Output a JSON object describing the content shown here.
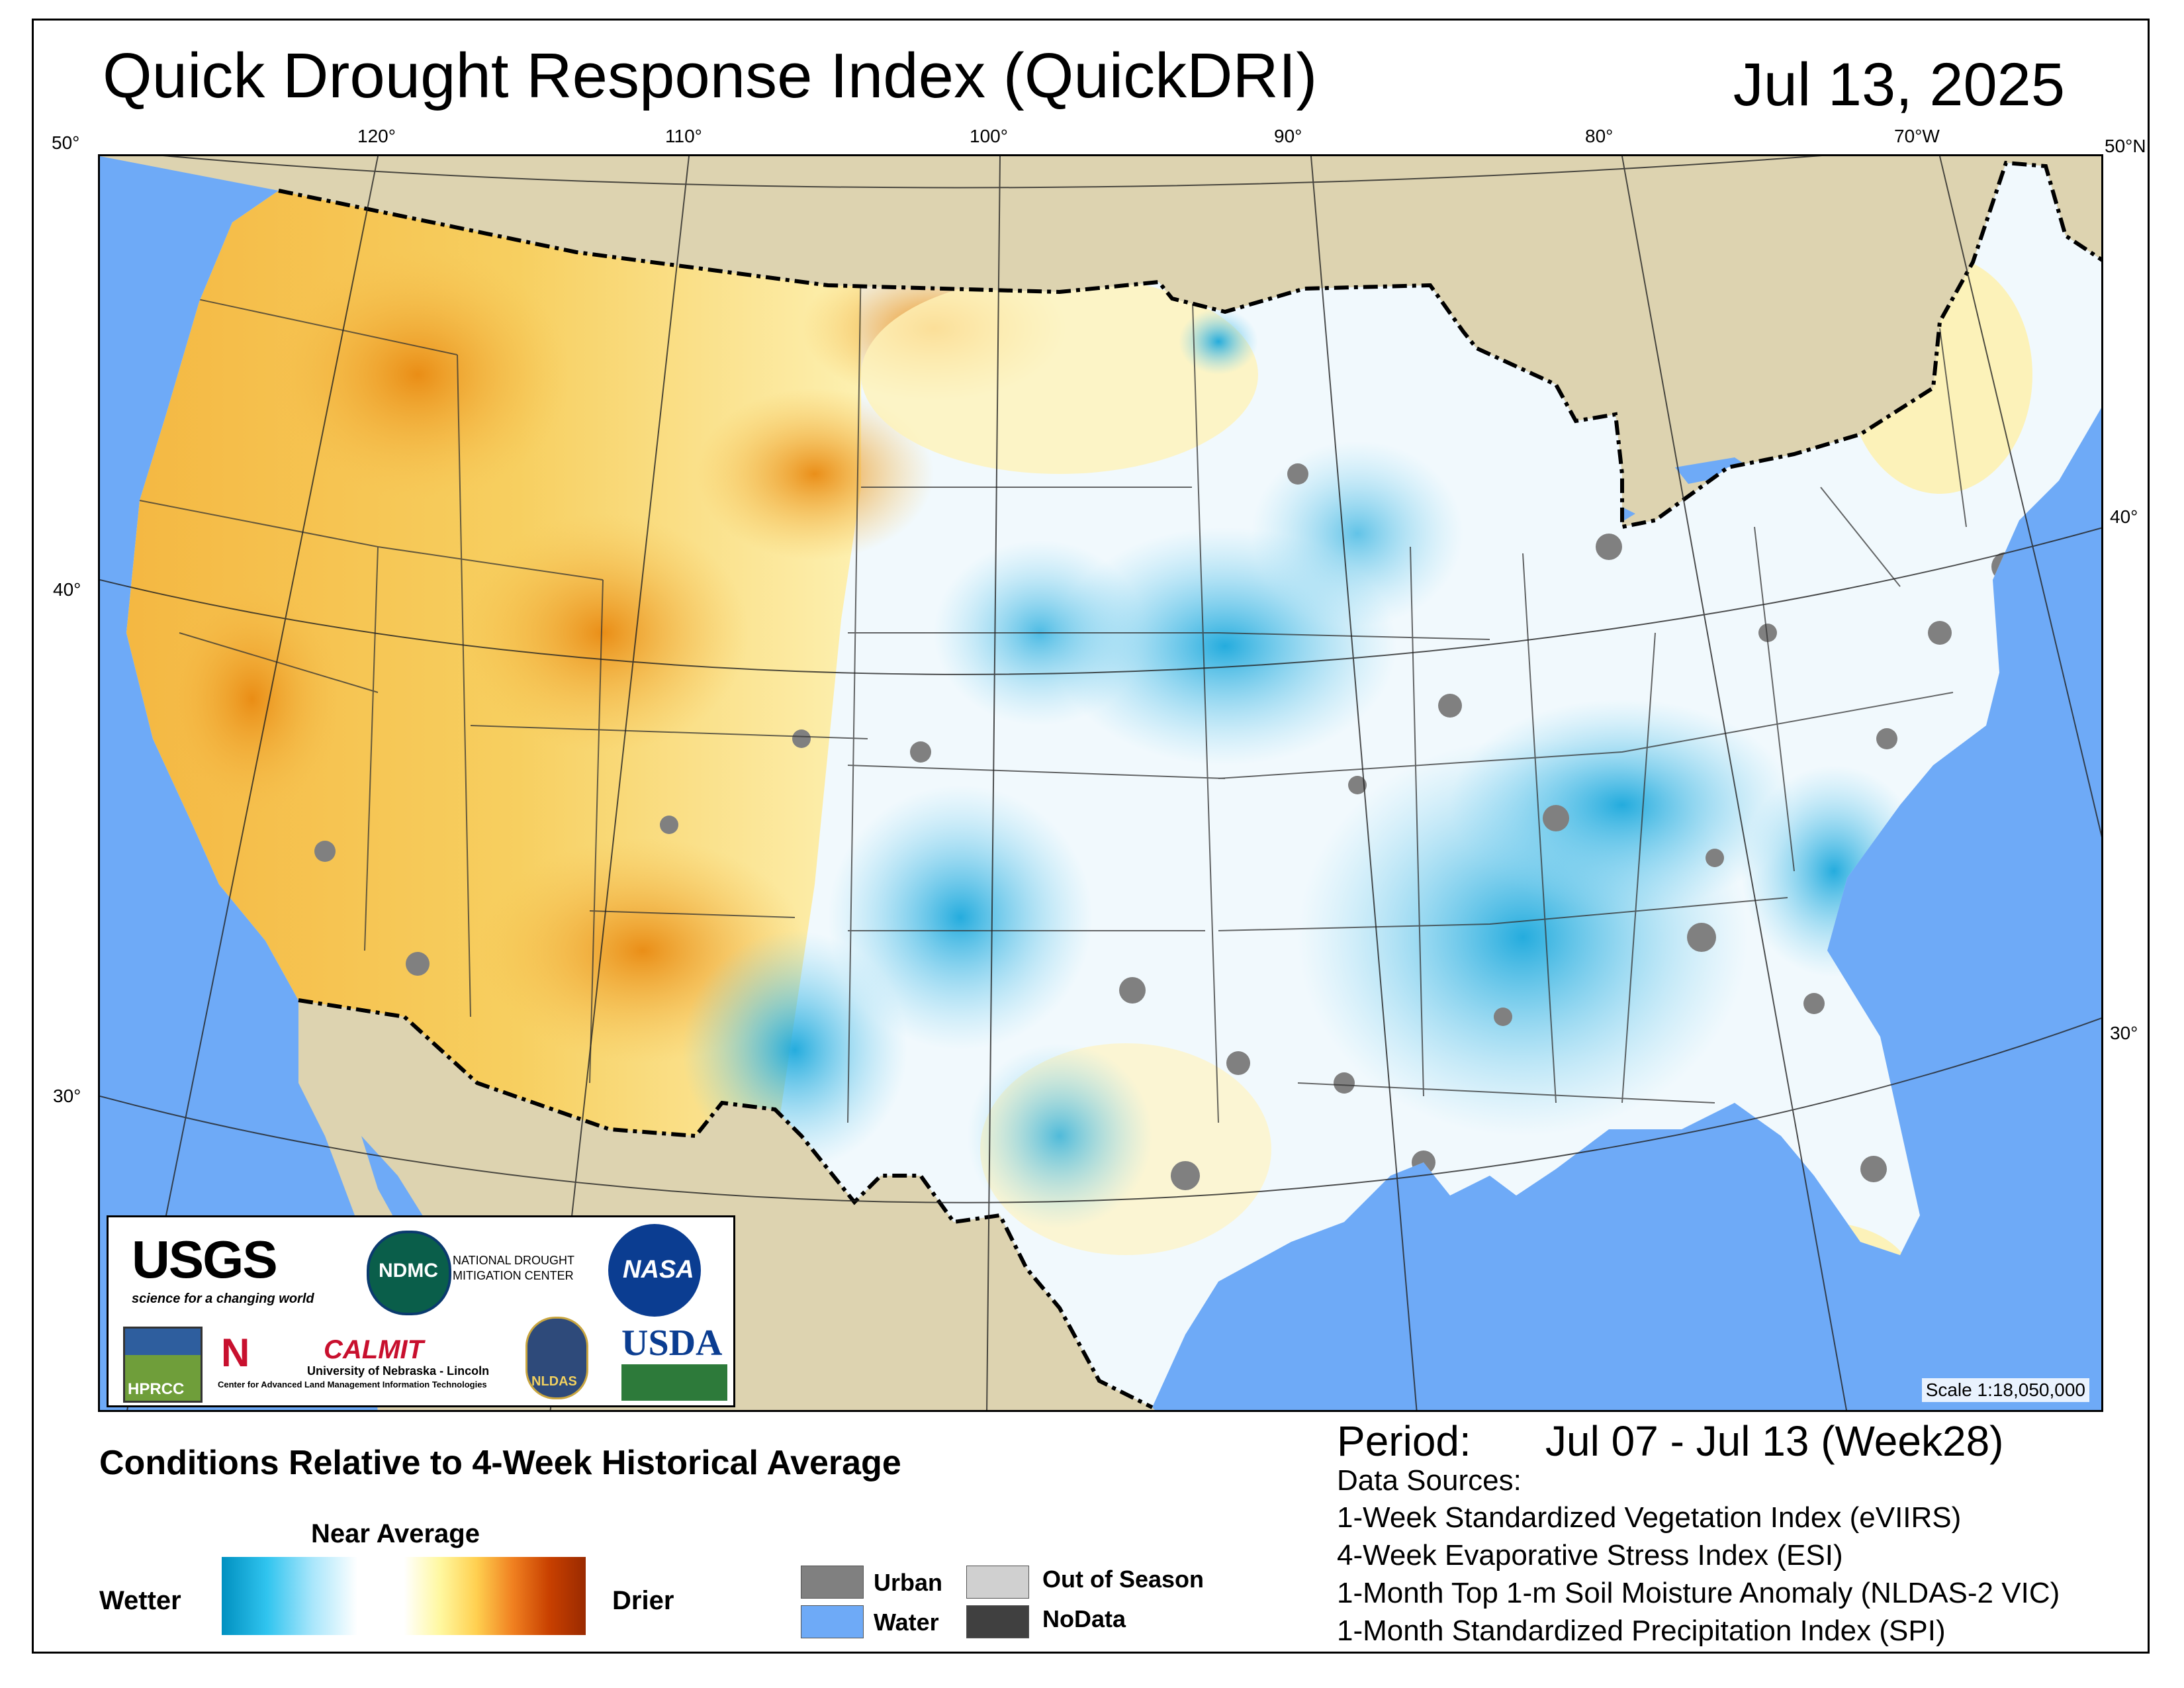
{
  "title": "Quick Drought Response Index (QuickDRI)",
  "date": "Jul 13, 2025",
  "graticule": {
    "top_labels": [
      "50°",
      "120°",
      "110°",
      "100°",
      "90°",
      "80°",
      "70°W",
      "50°N"
    ],
    "left_labels": [
      "40°",
      "30°"
    ],
    "right_labels": [
      "40°",
      "30°"
    ]
  },
  "map": {
    "scale": "Scale 1:18,050,000",
    "colors": {
      "ocean": "#6eaaf7",
      "land_outside": "#ddd3b0",
      "wetter": "#1aa8dc",
      "near_average": "#ffffff",
      "drier": "#f0a020",
      "urban": "#808080",
      "border": "#000000"
    }
  },
  "logos": {
    "usgs": "USGS",
    "usgs_tagline": "science for a changing world",
    "ndmc": "NDMC",
    "ndmc_name_1": "NATIONAL DROUGHT",
    "ndmc_name_2": "MITIGATION CENTER",
    "nasa": "NASA",
    "hprcc": "HPRCC",
    "calmit": "CALMIT",
    "calmit_line1": "University of Nebraska - Lincoln",
    "calmit_line2": "Center for Advanced Land Management Information Technologies",
    "nldas": "NLDAS",
    "usda": "USDA"
  },
  "legend": {
    "title": "Conditions Relative to 4-Week Historical Average",
    "near_average": "Near Average",
    "wetter": "Wetter",
    "drier": "Drier",
    "items": [
      {
        "label": "Urban",
        "color": "#808080"
      },
      {
        "label": "Water",
        "color": "#6eaaf7"
      },
      {
        "label": "Out of Season",
        "color": "#d0d0d0"
      },
      {
        "label": "NoData",
        "color": "#404040"
      }
    ]
  },
  "period": {
    "label": "Period:",
    "value": "Jul 07 - Jul 13 (Week28)"
  },
  "data_sources": {
    "heading": "Data Sources:",
    "items": [
      "1-Week Standardized Vegetation Index (eVIIRS)",
      "4-Week Evaporative Stress Index (ESI)",
      "1-Month Top 1-m Soil Moisture Anomaly (NLDAS-2 VIC)",
      "1-Month Standardized Precipitation Index (SPI)"
    ]
  }
}
